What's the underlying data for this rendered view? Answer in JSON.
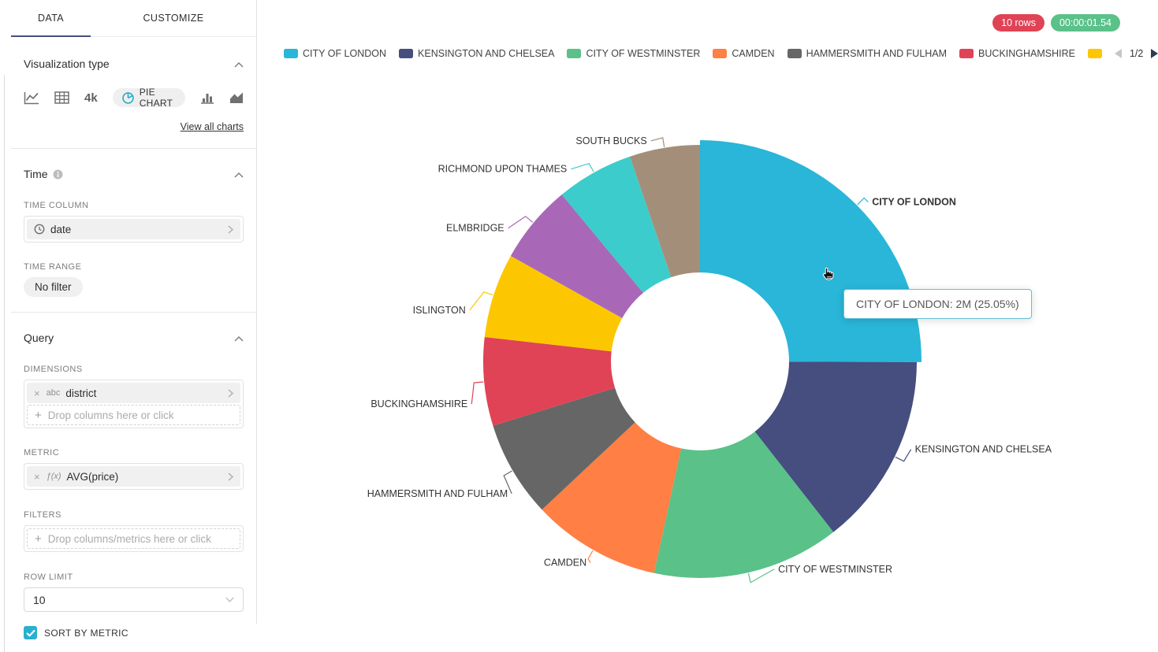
{
  "colors": {
    "tab_underline": "#454E7E",
    "rows_badge_bg": "#E04355",
    "duration_badge_bg": "#5AC189",
    "checkbox_bg": "#29B0CE",
    "tooltip_border": "#65BED9",
    "pie_icon": "#1FA8C9",
    "icon_gray": "#707070"
  },
  "sidebar": {
    "tabs": [
      {
        "label": "DATA"
      },
      {
        "label": "CUSTOMIZE"
      }
    ],
    "viz": {
      "title": "Visualization type",
      "big_number": "4k",
      "selected": "PIE CHART",
      "view_all": "View all charts"
    },
    "time": {
      "title": "Time",
      "column_label": "TIME COLUMN",
      "column_value": "date",
      "range_label": "TIME RANGE",
      "range_value": "No filter"
    },
    "query": {
      "title": "Query",
      "dimensions_label": "DIMENSIONS",
      "dimension_tag": "abc",
      "dimension_value": "district",
      "dimensions_placeholder": "Drop columns here or click",
      "metric_label": "METRIC",
      "metric_tag": "ƒ(x)",
      "metric_value": "AVG(price)",
      "filters_label": "FILTERS",
      "filters_placeholder": "Drop columns/metrics here or click",
      "row_limit_label": "ROW LIMIT",
      "row_limit_value": "10",
      "sort_label": "SORT BY METRIC",
      "sort_checked": true
    }
  },
  "status": {
    "rows": "10 rows",
    "duration": "00:00:01.54"
  },
  "legend": {
    "page": "1/2",
    "visible_labels": 6
  },
  "tooltip": {
    "text": "CITY OF LONDON: 2M (25.05%)"
  },
  "chart_data": {
    "type": "pie",
    "donut": true,
    "dimension": "district",
    "metric": "AVG(price)",
    "legend_position": "top",
    "slices": [
      {
        "name": "CITY OF LONDON",
        "pct": 25.05,
        "value_label": "2M",
        "color": "#29B6D8",
        "hovered": true
      },
      {
        "name": "KENSINGTON AND CHELSEA",
        "pct": 14.4,
        "color": "#454E7E"
      },
      {
        "name": "CITY OF WESTMINSTER",
        "pct": 13.95,
        "color": "#5AC189"
      },
      {
        "name": "CAMDEN",
        "pct": 9.6,
        "color": "#FF7F44"
      },
      {
        "name": "HAMMERSMITH AND FULHAM",
        "pct": 7.2,
        "color": "#666666"
      },
      {
        "name": "BUCKINGHAMSHIRE",
        "pct": 6.6,
        "color": "#E04355"
      },
      {
        "name": "ISLINGTON",
        "pct": 6.3,
        "color": "#FCC700"
      },
      {
        "name": "ELMBRIDGE",
        "pct": 5.9,
        "color": "#A868B7"
      },
      {
        "name": "RICHMOND UPON THAMES",
        "pct": 5.75,
        "color": "#3CCCCB"
      },
      {
        "name": "SOUTH BUCKS",
        "pct": 5.25,
        "color": "#A38F79"
      }
    ]
  }
}
